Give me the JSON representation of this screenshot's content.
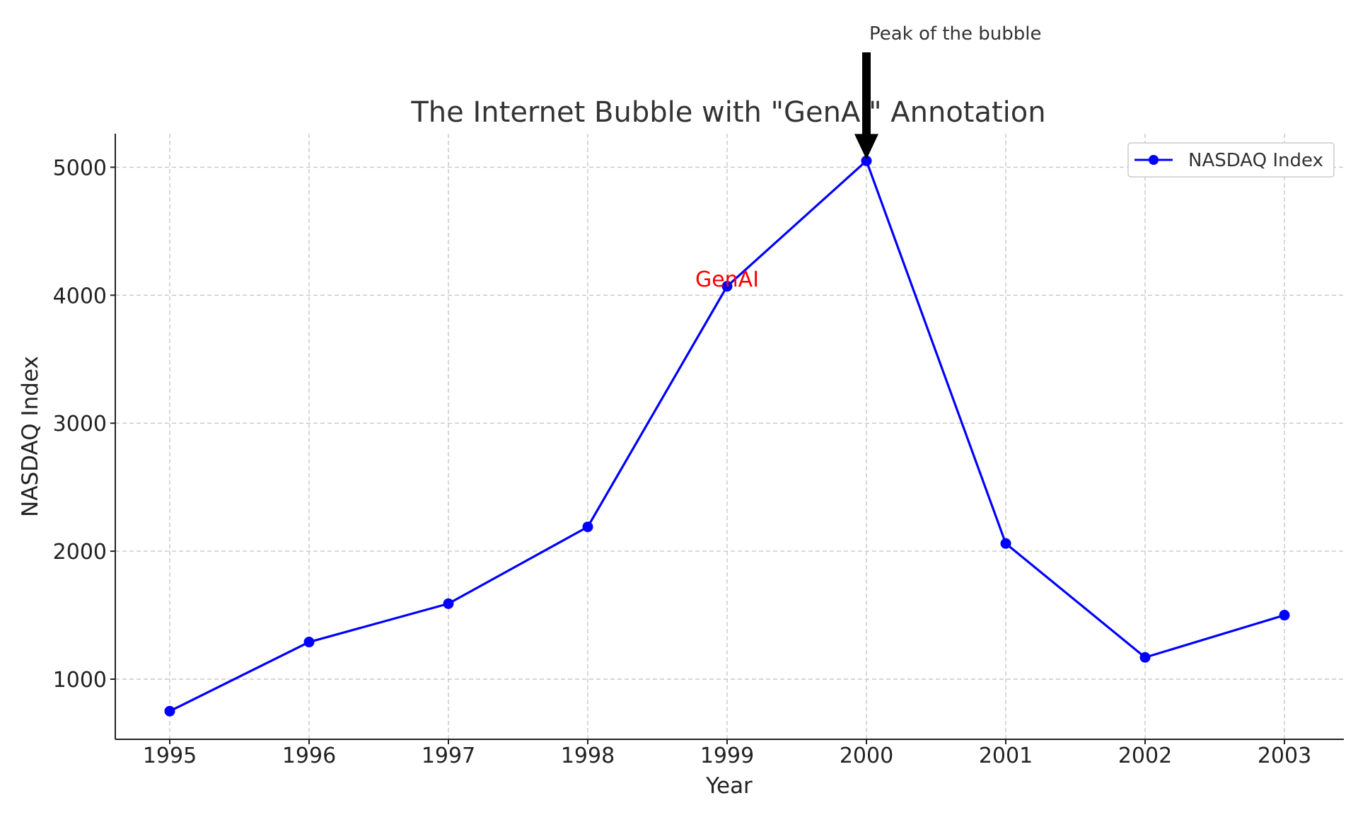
{
  "chart_data": {
    "type": "line",
    "title": "The Internet Bubble with \"GenAI\" Annotation",
    "xlabel": "Year",
    "ylabel": "NASDAQ Index",
    "x": [
      1995,
      1996,
      1997,
      1998,
      1999,
      2000,
      2001,
      2002,
      2003
    ],
    "x_tick_labels": [
      "1995",
      "1996",
      "1997",
      "1998",
      "1999",
      "2000",
      "2001",
      "2002",
      "2003"
    ],
    "y_ticks": [
      1000,
      2000,
      3000,
      4000,
      5000
    ],
    "y_tick_labels": [
      "1000",
      "2000",
      "3000",
      "4000",
      "5000"
    ],
    "xlim": [
      1994.8,
      2003.4
    ],
    "ylim": [
      540,
      5270
    ],
    "grid": true,
    "legend_position": "top-right",
    "series": [
      {
        "name": "NASDAQ Index",
        "color": "#0000ff",
        "marker": "circle",
        "values": [
          750,
          1290,
          1590,
          2190,
          4070,
          5050,
          2060,
          1170,
          1500
        ]
      }
    ],
    "annotations": [
      {
        "text": "Peak of the bubble",
        "x": 2000,
        "y": 5050,
        "arrow": true,
        "arrow_color": "#000000"
      },
      {
        "text": "GenAI",
        "x": 1999,
        "y": 4130,
        "color": "#ff0000"
      }
    ]
  }
}
